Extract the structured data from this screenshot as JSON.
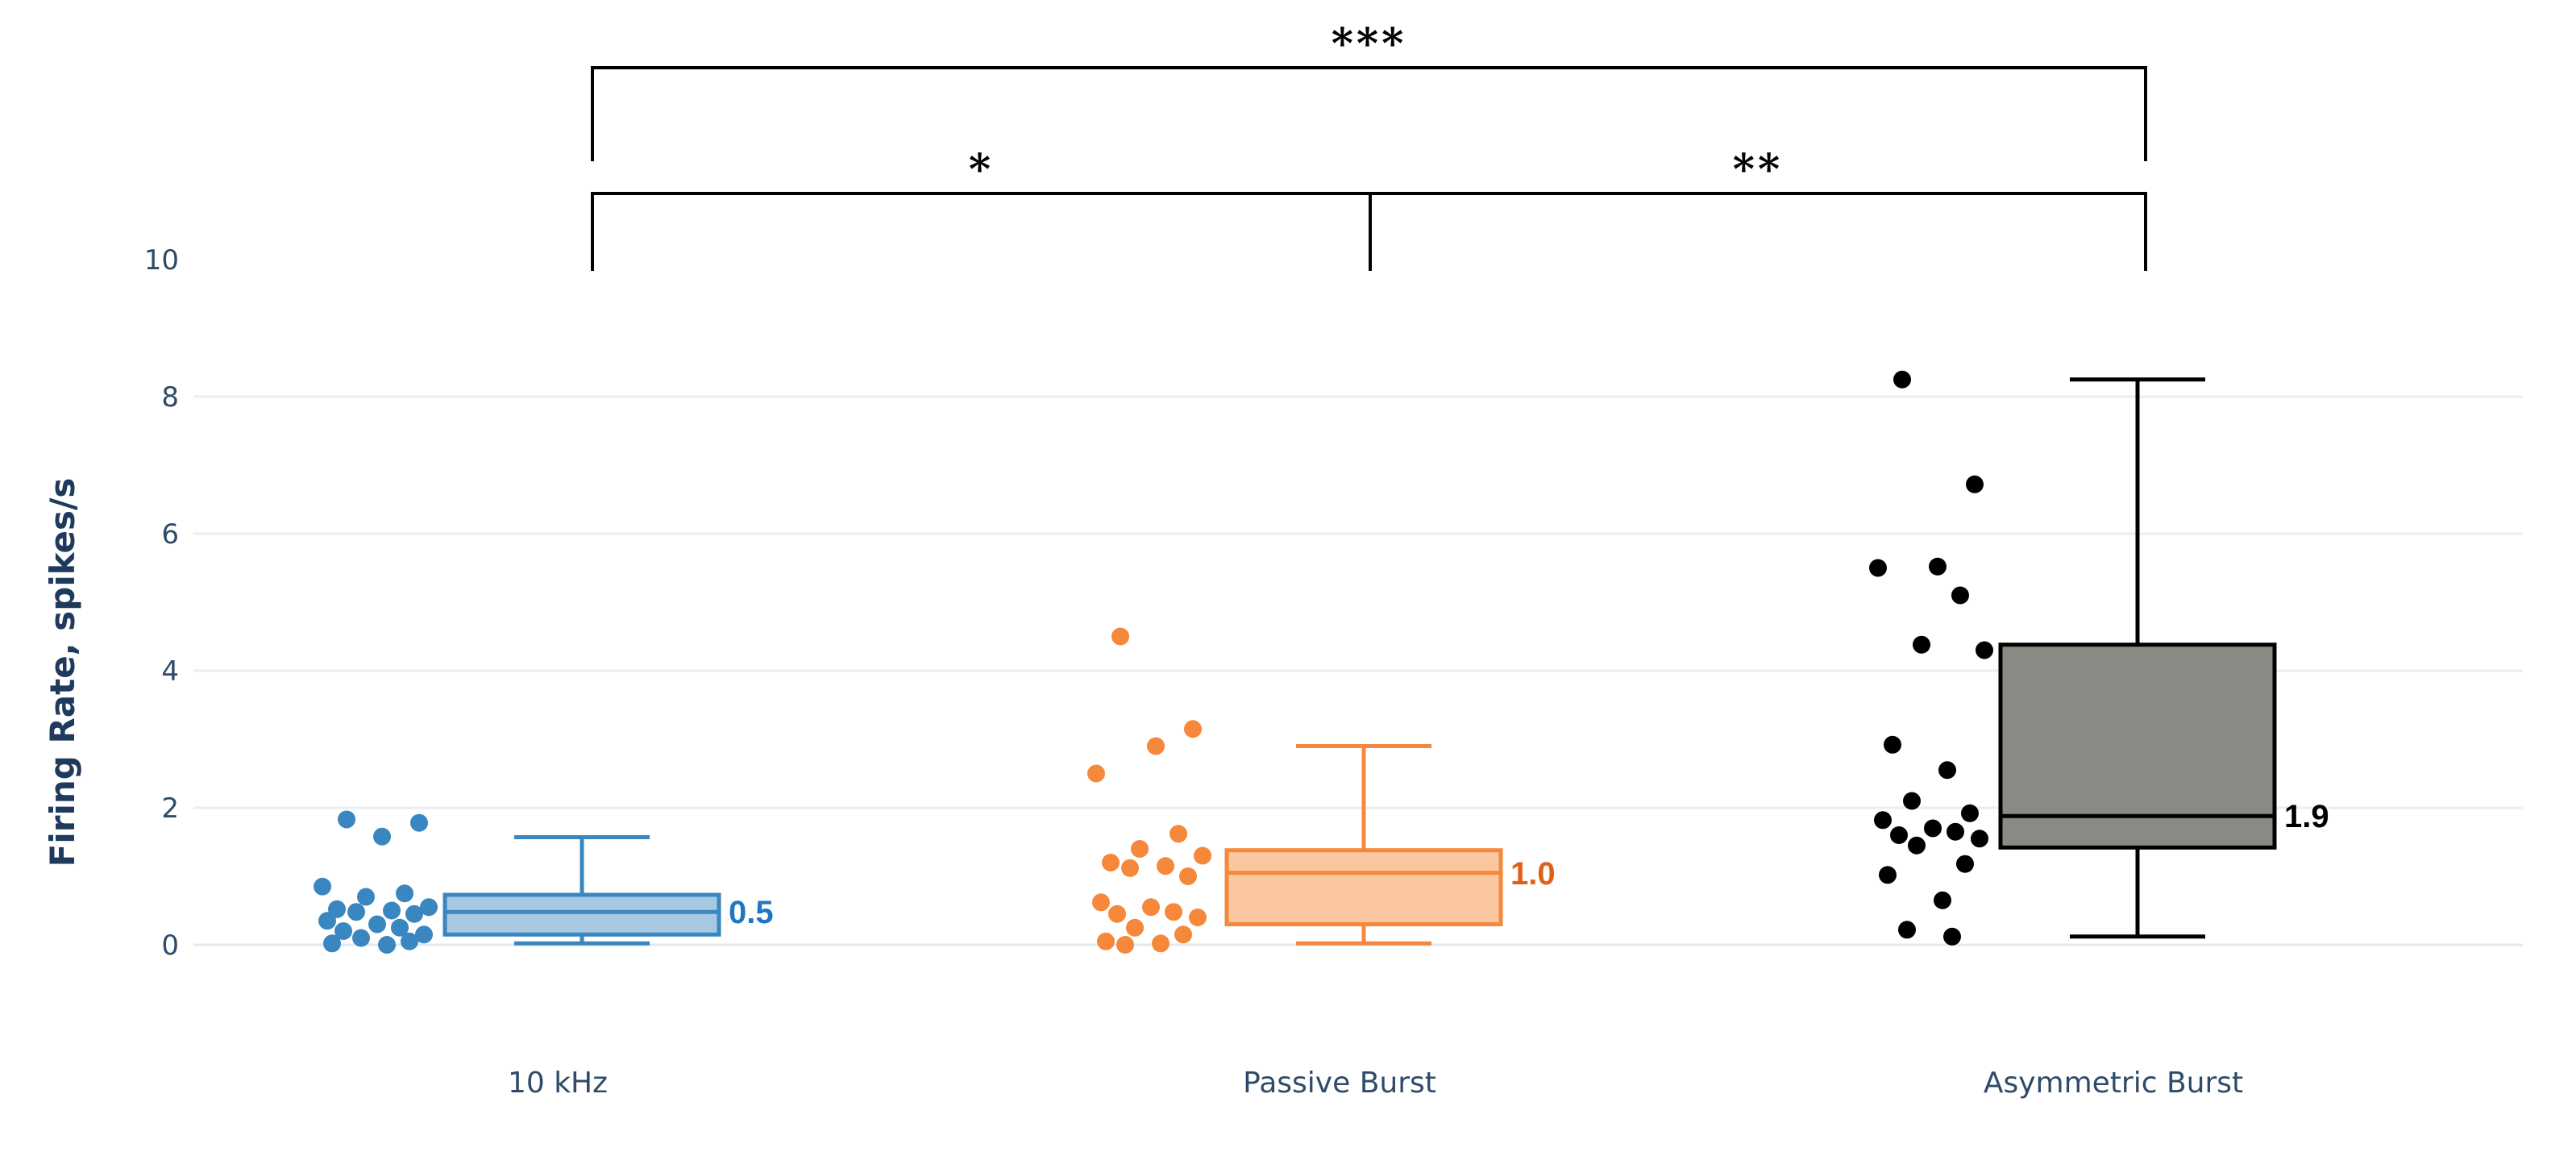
{
  "chart_data": {
    "type": "box",
    "ylabel": "Firing Rate, spikes/s",
    "ylim": [
      0,
      10
    ],
    "yticks": [
      "0",
      "2",
      "4",
      "6",
      "8",
      "10"
    ],
    "grid": "horizontal",
    "categories": [
      "10 kHz",
      "Passive Burst",
      "Asymmetric Burst"
    ],
    "series": [
      {
        "category": "10 kHz",
        "color": "#3a86c0",
        "fill": "#a7c8e3",
        "median_label": "0.5",
        "label_color": "#1f77c4",
        "box": {
          "min": 0.02,
          "q1": 0.15,
          "median": 0.48,
          "q3": 0.73,
          "max": 1.57
        },
        "points": [
          1.83,
          1.78,
          1.58,
          0.85,
          0.75,
          0.7,
          0.55,
          0.52,
          0.5,
          0.48,
          0.45,
          0.35,
          0.3,
          0.25,
          0.2,
          0.15,
          0.1,
          0.05,
          0.02,
          0.0
        ]
      },
      {
        "category": "Passive Burst",
        "color": "#f5883a",
        "fill": "#fbc7a1",
        "median_label": "1.0",
        "label_color": "#e0601a",
        "box": {
          "min": 0.02,
          "q1": 0.3,
          "median": 1.05,
          "q3": 1.38,
          "max": 2.9
        },
        "points": [
          4.5,
          3.15,
          2.9,
          2.5,
          1.62,
          1.4,
          1.3,
          1.2,
          1.15,
          1.12,
          1.0,
          0.62,
          0.55,
          0.48,
          0.45,
          0.4,
          0.25,
          0.15,
          0.05,
          0.02,
          0.0
        ]
      },
      {
        "category": "Asymmetric Burst",
        "color": "#000000",
        "fill": "#8a8a85",
        "median_label": "1.9",
        "label_color": "#000000",
        "box": {
          "min": 0.12,
          "q1": 1.42,
          "median": 1.88,
          "q3": 4.38,
          "max": 8.25
        },
        "points": [
          8.25,
          6.72,
          5.52,
          5.5,
          5.1,
          4.38,
          4.3,
          2.92,
          2.55,
          2.1,
          1.92,
          1.82,
          1.7,
          1.65,
          1.6,
          1.55,
          1.45,
          1.18,
          1.02,
          0.65,
          0.22,
          0.12
        ]
      }
    ],
    "significance": [
      {
        "from": "10 kHz",
        "to": "Asymmetric Burst",
        "label": "***"
      },
      {
        "from": "10 kHz",
        "to": "Passive Burst",
        "label": "*"
      },
      {
        "from": "Passive Burst",
        "to": "Asymmetric Burst",
        "label": "**"
      }
    ]
  }
}
